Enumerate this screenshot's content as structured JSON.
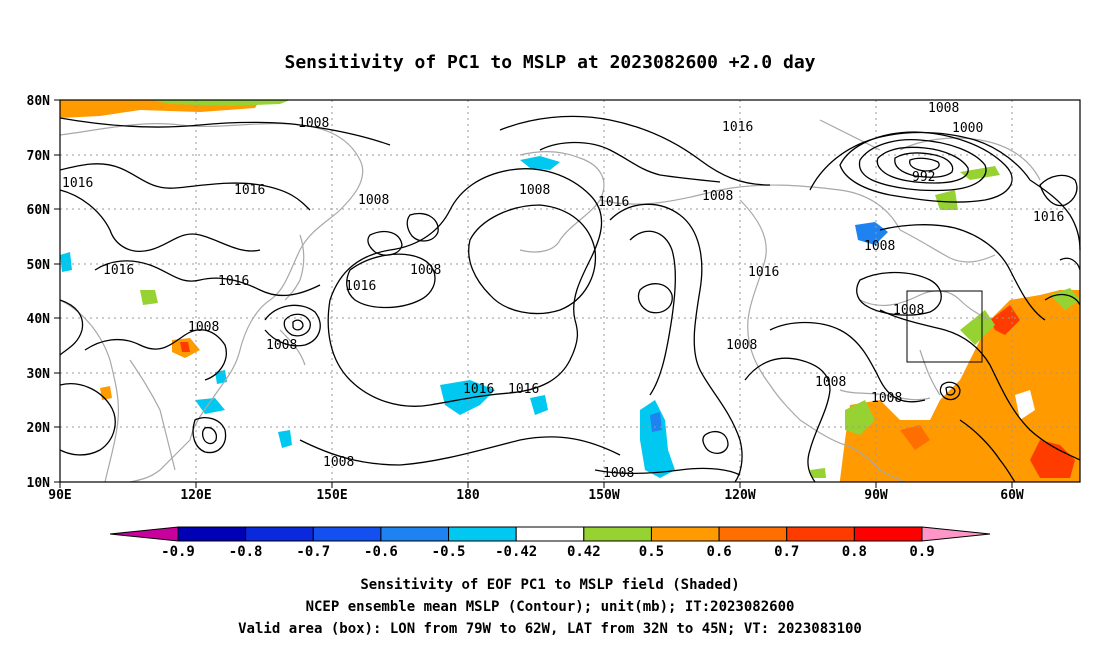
{
  "title": "Sensitivity of PC1 to MSLP at 2023082600 +2.0 day",
  "lat_labels": [
    "80N",
    "70N",
    "60N",
    "50N",
    "40N",
    "30N",
    "20N",
    "10N"
  ],
  "lon_labels": [
    "90E",
    "120E",
    "150E",
    "180",
    "150W",
    "120W",
    "90W",
    "60W"
  ],
  "contour_labels": [
    "1008",
    "1016",
    "1016",
    "1008",
    "1016",
    "1008",
    "1016",
    "1008",
    "1016",
    "1016",
    "1016",
    "1008",
    "1008",
    "1008",
    "1016",
    "1008",
    "1008",
    "1008",
    "1000",
    "992",
    "1016",
    "1008",
    "1016",
    "1016",
    "1008",
    "1008",
    "1008",
    "1008"
  ],
  "colorbar": {
    "labels": [
      "-0.9",
      "-0.8",
      "-0.7",
      "-0.6",
      "-0.5",
      "-0.42",
      "0.42",
      "0.5",
      "0.6",
      "0.7",
      "0.8",
      "0.9"
    ],
    "colors": [
      "#c8009c",
      "#0000b4",
      "#0a28dc",
      "#1450f0",
      "#1e82f0",
      "#00c8f0",
      "#ffffff",
      "#96d232",
      "#ff9b00",
      "#ff6e00",
      "#ff3c00",
      "#ff0000",
      "#ff96c8"
    ]
  },
  "captions": [
    "Sensitivity of EOF PC1 to MSLP field (Shaded)",
    "NCEP ensemble mean MSLP (Contour); unit(mb); IT:2023082600",
    "Valid area (box): LON from 79W to 62W, LAT from 32N to 45N; VT: 2023083100"
  ]
}
